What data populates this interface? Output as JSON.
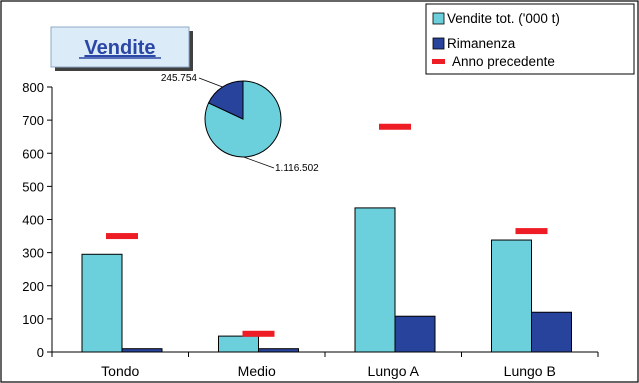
{
  "chart_data": {
    "type": "bar",
    "title": "Vendite",
    "categories": [
      "Tondo",
      "Medio",
      "Lungo A",
      "Lungo B"
    ],
    "ylim": [
      0,
      800
    ],
    "yticks": [
      0,
      100,
      200,
      300,
      400,
      500,
      600,
      700,
      800
    ],
    "grid": false,
    "legend_position": "top-right",
    "series": [
      {
        "name": "Vendite tot. ('000 t)",
        "kind": "bar",
        "color": "#6ccfdc",
        "values": [
          295,
          48,
          435,
          338
        ]
      },
      {
        "name": "Rimanenza",
        "kind": "bar",
        "color": "#28439c",
        "values": [
          10,
          10,
          108,
          120
        ]
      },
      {
        "name": "Anno precedente",
        "kind": "marker",
        "color": "#ee1c24",
        "values": [
          350,
          55,
          680,
          365
        ]
      }
    ],
    "inset_pie": {
      "slices": [
        {
          "label": "1.116.502",
          "value": 1116502,
          "color": "#6ccfdc"
        },
        {
          "label": "245.754",
          "value": 245754,
          "color": "#28439c"
        }
      ]
    }
  }
}
